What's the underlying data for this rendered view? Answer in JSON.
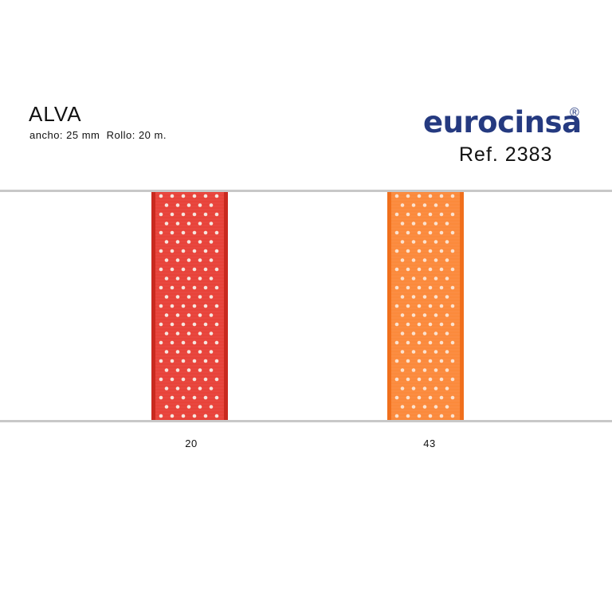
{
  "product": {
    "name": "ALVA",
    "spec": "ancho: 25 mm  Rollo: 20 m."
  },
  "brand": {
    "name": "eurocinsa",
    "mark": "®",
    "ref": "Ref. 2383",
    "color": "#253a80"
  },
  "swatches": [
    {
      "code": "20",
      "color": "#e8433a",
      "edge_color": "#c92a1f",
      "dot_color": "#f6e6df"
    },
    {
      "code": "43",
      "color": "#fb8a3c",
      "edge_color": "#f06f1c",
      "dot_color": "#fbe2cf"
    }
  ]
}
